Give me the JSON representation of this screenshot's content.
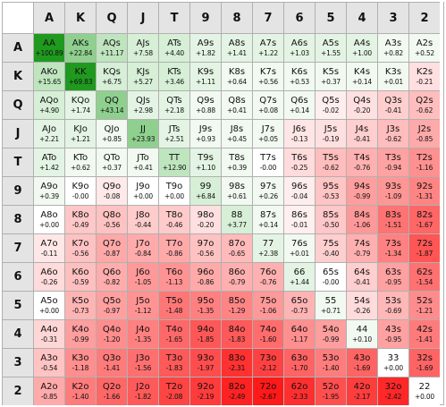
{
  "ranks": [
    "A",
    "K",
    "Q",
    "J",
    "T",
    "9",
    "8",
    "7",
    "6",
    "5",
    "4",
    "3",
    "2"
  ],
  "cells": [
    [
      "AA",
      "+100.89",
      "AKs",
      "+22.84",
      "AQs",
      "+11.17",
      "AJs",
      "+7.58",
      "ATs",
      "+4.40",
      "A9s",
      "+1.82",
      "A8s",
      "+1.41",
      "A7s",
      "+1.22",
      "A6s",
      "+1.03",
      "A5s",
      "+1.55",
      "A4s",
      "+1.00",
      "A3s",
      "+0.82",
      "A2s",
      "+0.52"
    ],
    [
      "AKo",
      "+15.65",
      "KK",
      "+69.83",
      "KQs",
      "+6.75",
      "KJs",
      "+5.27",
      "KTs",
      "+3.46",
      "K9s",
      "+1.11",
      "K8s",
      "+0.64",
      "K7s",
      "+0.56",
      "K6s",
      "+0.53",
      "K5s",
      "+0.37",
      "K4s",
      "+0.14",
      "K3s",
      "+0.01",
      "K2s",
      "-0.21"
    ],
    [
      "AQo",
      "+4.90",
      "KQo",
      "+1.74",
      "QQ",
      "+43.14",
      "QJs",
      "+2.98",
      "QTs",
      "+2.18",
      "Q9s",
      "+0.88",
      "Q8s",
      "+0.41",
      "Q7s",
      "+0.08",
      "Q6s",
      "+0.14",
      "Q5s",
      "-0.02",
      "Q4s",
      "-0.20",
      "Q3s",
      "-0.41",
      "Q2s",
      "-0.62"
    ],
    [
      "AJo",
      "+2.21",
      "KJo",
      "+1.21",
      "QJo",
      "+0.85",
      "JJ",
      "+23.93",
      "JTs",
      "+2.51",
      "J9s",
      "+0.93",
      "J8s",
      "+0.45",
      "J7s",
      "+0.05",
      "J6s",
      "-0.13",
      "J5s",
      "-0.19",
      "J4s",
      "-0.41",
      "J3s",
      "-0.62",
      "J2s",
      "-0.85"
    ],
    [
      "ATo",
      "+1.42",
      "KTo",
      "+0.62",
      "QTo",
      "+0.37",
      "JTo",
      "+0.41",
      "TT",
      "+12.90",
      "T9s",
      "+1.10",
      "T8s",
      "+0.39",
      "T7s",
      "-0.00",
      "T6s",
      "-0.25",
      "T5s",
      "-0.62",
      "T4s",
      "-0.76",
      "T3s",
      "-0.94",
      "T2s",
      "-1.16"
    ],
    [
      "A9o",
      "+0.39",
      "K9o",
      "-0.00",
      "Q9o",
      "-0.08",
      "J9o",
      "+0.00",
      "T9o",
      "+0.00",
      "99",
      "+6.84",
      "98s",
      "+0.61",
      "97s",
      "+0.26",
      "96s",
      "-0.04",
      "95s",
      "-0.53",
      "94s",
      "-0.99",
      "93s",
      "-1.09",
      "92s",
      "-1.31"
    ],
    [
      "A8o",
      "+0.00",
      "K8o",
      "-0.49",
      "Q8o",
      "-0.56",
      "J8o",
      "-0.44",
      "T8o",
      "-0.46",
      "98o",
      "-0.20",
      "88",
      "+3.77",
      "87s",
      "+0.14",
      "86s",
      "-0.01",
      "85s",
      "-0.50",
      "84s",
      "-1.06",
      "83s",
      "-1.51",
      "82s",
      "-1.67"
    ],
    [
      "A7o",
      "-0.11",
      "K7o",
      "-0.56",
      "Q7o",
      "-0.87",
      "J7o",
      "-0.84",
      "T7o",
      "-0.86",
      "97o",
      "-0.56",
      "87o",
      "-0.65",
      "77",
      "+2.38",
      "76s",
      "+0.01",
      "75s",
      "-0.40",
      "74s",
      "-0.79",
      "73s",
      "-1.34",
      "72s",
      "-1.87"
    ],
    [
      "A6o",
      "-0.26",
      "K6o",
      "-0.59",
      "Q6o",
      "-0.82",
      "J6o",
      "-1.05",
      "T6o",
      "-1.13",
      "96o",
      "-0.86",
      "86o",
      "-0.79",
      "76o",
      "-0.76",
      "66",
      "+1.44",
      "65s",
      "-0.00",
      "64s",
      "-0.41",
      "63s",
      "-0.95",
      "62s",
      "-1.54"
    ],
    [
      "A5o",
      "+0.00",
      "K5o",
      "-0.73",
      "Q5o",
      "-0.97",
      "J5o",
      "-1.12",
      "T5o",
      "-1.48",
      "95o",
      "-1.35",
      "85o",
      "-1.29",
      "75o",
      "-1.06",
      "65o",
      "-0.73",
      "55",
      "+0.71",
      "54s",
      "-0.26",
      "53s",
      "-0.69",
      "52s",
      "-1.21"
    ],
    [
      "A4o",
      "-0.31",
      "K4o",
      "-0.99",
      "Q4o",
      "-1.20",
      "J4o",
      "-1.35",
      "T4o",
      "-1.65",
      "94o",
      "-1.85",
      "84o",
      "-1.83",
      "74o",
      "-1.60",
      "64o",
      "-1.17",
      "54o",
      "-0.99",
      "44",
      "+0.10",
      "43s",
      "-0.95",
      "42s",
      "-1.41"
    ],
    [
      "A3o",
      "-0.54",
      "K3o",
      "-1.18",
      "Q3o",
      "-1.41",
      "J3o",
      "-1.56",
      "T3o",
      "-1.83",
      "93o",
      "-1.97",
      "83o",
      "-2.31",
      "73o",
      "-2.12",
      "63o",
      "-1.70",
      "53o",
      "-1.40",
      "43o",
      "-1.69",
      "33",
      "+0.00",
      "32s",
      "-1.69"
    ],
    [
      "A2o",
      "-0.85",
      "K2o",
      "-1.40",
      "Q2o",
      "-1.66",
      "J2o",
      "-1.82",
      "T2o",
      "-2.08",
      "92o",
      "-2.19",
      "82o",
      "-2.49",
      "72o",
      "-2.67",
      "62o",
      "-2.33",
      "52o",
      "-1.95",
      "42o",
      "-2.17",
      "32o",
      "-2.42",
      "22",
      "+0.00"
    ]
  ],
  "colors": {
    "header_bg": "#e4e4e4",
    "grid_line": "#b0b0b0",
    "best_positive": "#2e9e2e",
    "positive_light": "#e6f5e6",
    "negative_strong": "#ee1111",
    "negative_light": "#fff0f0",
    "neutral": "#ffffff"
  }
}
